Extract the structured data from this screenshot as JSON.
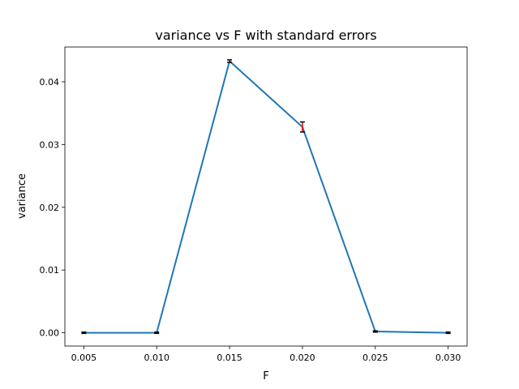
{
  "chart_data": {
    "type": "line",
    "title": "variance vs F with standard errors",
    "xlabel": "F",
    "ylabel": "variance",
    "xlim": [
      0.0037,
      0.0313
    ],
    "ylim": [
      -0.00212,
      0.04555
    ],
    "x_ticks": [
      0.005,
      0.01,
      0.015,
      0.02,
      0.025,
      0.03
    ],
    "x_tick_labels": [
      "0.005",
      "0.010",
      "0.015",
      "0.020",
      "0.025",
      "0.030"
    ],
    "y_ticks": [
      0.0,
      0.01,
      0.02,
      0.03,
      0.04
    ],
    "y_tick_labels": [
      "0.00",
      "0.01",
      "0.02",
      "0.03",
      "0.04"
    ],
    "grid": false,
    "series": [
      {
        "color": "#1f77b4",
        "x": [
          0.005,
          0.01,
          0.015,
          0.02,
          0.025,
          0.03
        ],
        "y": [
          0.0,
          0.0,
          0.0433,
          0.0328,
          0.0002,
          0.0
        ],
        "yerr": [
          0.0001,
          0.0001,
          0.0002,
          0.0008,
          0.0001,
          0.0001
        ],
        "error_color": "#ff0000",
        "cap_color": "#000000"
      }
    ]
  }
}
